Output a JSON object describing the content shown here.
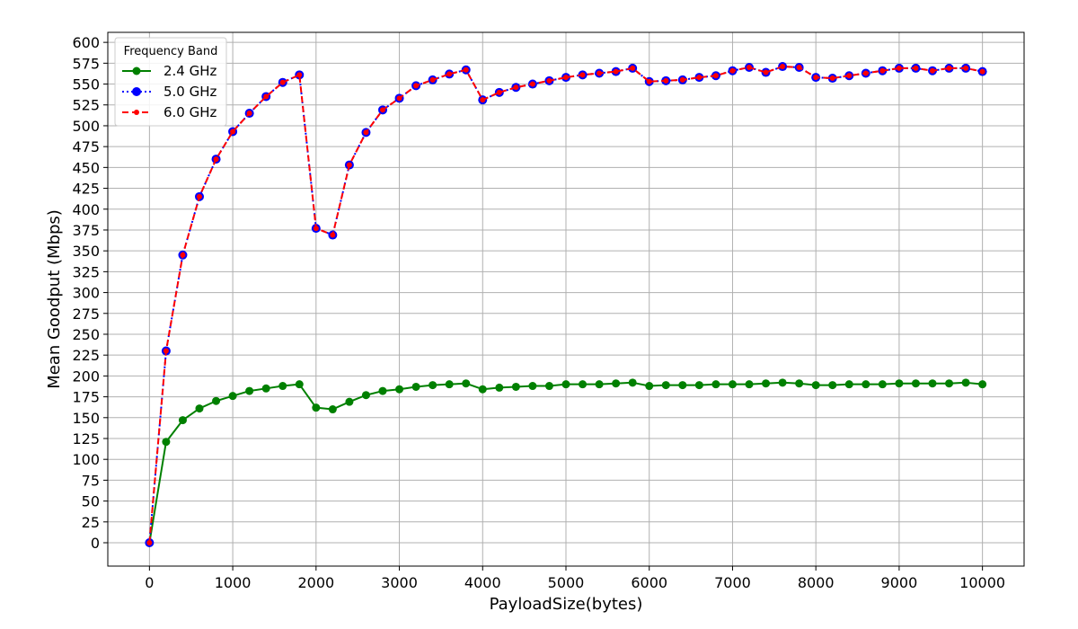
{
  "chart_data": {
    "type": "line",
    "xlabel": "PayloadSize(bytes)",
    "ylabel": "Mean Goodput (Mbps)",
    "xlim": [
      -500,
      10500
    ],
    "ylim": [
      -28,
      612
    ],
    "xticks": [
      0,
      1000,
      2000,
      3000,
      4000,
      5000,
      6000,
      7000,
      8000,
      9000,
      10000
    ],
    "yticks": [
      0,
      25,
      50,
      75,
      100,
      125,
      150,
      175,
      200,
      225,
      250,
      275,
      300,
      325,
      350,
      375,
      400,
      425,
      450,
      475,
      500,
      525,
      550,
      575,
      600
    ],
    "grid": true,
    "legend": {
      "title": "Frequency Band",
      "position": "top-left"
    },
    "x": [
      0,
      200,
      400,
      600,
      800,
      1000,
      1200,
      1400,
      1600,
      1800,
      2000,
      2200,
      2400,
      2600,
      2800,
      3000,
      3200,
      3400,
      3600,
      3800,
      4000,
      4200,
      4400,
      4600,
      4800,
      5000,
      5200,
      5400,
      5600,
      5800,
      6000,
      6200,
      6400,
      6600,
      6800,
      7000,
      7200,
      7400,
      7600,
      7800,
      8000,
      8200,
      8400,
      8600,
      8800,
      9000,
      9200,
      9400,
      9600,
      9800,
      10000
    ],
    "series": [
      {
        "name": "2.4 GHz",
        "color": "#008000",
        "style": "solid",
        "values": [
          0,
          121,
          147,
          161,
          170,
          176,
          182,
          185,
          188,
          190,
          162,
          160,
          169,
          177,
          182,
          184,
          187,
          189,
          190,
          191,
          184,
          186,
          187,
          188,
          188,
          190,
          190,
          190,
          191,
          192,
          188,
          189,
          189,
          189,
          190,
          190,
          190,
          191,
          192,
          191,
          189,
          189,
          190,
          190,
          190,
          191,
          191,
          191,
          191,
          192,
          190
        ]
      },
      {
        "name": "5.0 GHz",
        "color": "#0000ff",
        "style": "dotted",
        "values": [
          0,
          230,
          345,
          415,
          460,
          493,
          515,
          535,
          552,
          561,
          377,
          369,
          453,
          492,
          519,
          533,
          548,
          555,
          562,
          567,
          531,
          540,
          546,
          550,
          554,
          558,
          561,
          563,
          565,
          569,
          553,
          554,
          555,
          558,
          560,
          566,
          570,
          564,
          571,
          570,
          558,
          557,
          560,
          563,
          566,
          569,
          569,
          566,
          569,
          569,
          565
        ]
      },
      {
        "name": "6.0 GHz",
        "color": "#ff0000",
        "style": "dashed",
        "values": [
          0,
          230,
          345,
          415,
          460,
          493,
          515,
          535,
          552,
          561,
          377,
          369,
          453,
          492,
          519,
          533,
          548,
          555,
          562,
          567,
          531,
          540,
          546,
          550,
          554,
          558,
          561,
          563,
          565,
          569,
          553,
          554,
          555,
          558,
          560,
          566,
          570,
          564,
          571,
          570,
          558,
          557,
          560,
          563,
          566,
          569,
          569,
          566,
          569,
          569,
          565
        ]
      }
    ]
  }
}
